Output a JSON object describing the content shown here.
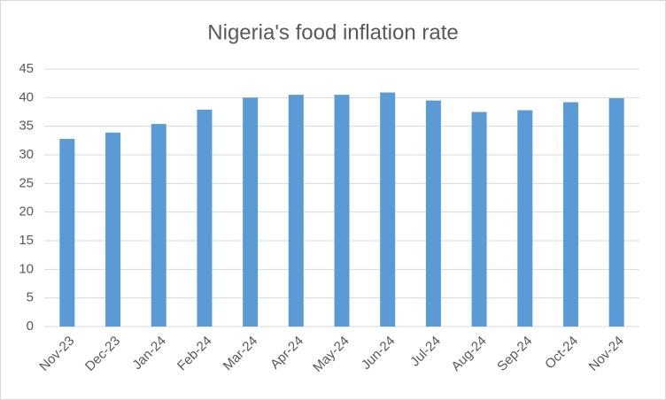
{
  "chart_data": {
    "type": "bar",
    "title": "Nigeria's food inflation rate",
    "categories": [
      "Nov-23",
      "Dec-23",
      "Jan-24",
      "Feb-24",
      "Mar-24",
      "Apr-24",
      "May-24",
      "Jun-24",
      "Jul-24",
      "Aug-24",
      "Sep-24",
      "Oct-24",
      "Nov-24"
    ],
    "values": [
      32.8,
      33.9,
      35.4,
      37.9,
      40.0,
      40.5,
      40.5,
      40.9,
      39.5,
      37.5,
      37.8,
      39.2,
      39.9
    ],
    "color": "#5b9bd5",
    "ylim": [
      0,
      45
    ],
    "yticks": [
      0,
      5,
      10,
      15,
      20,
      25,
      30,
      35,
      40,
      45
    ],
    "grid": true
  }
}
